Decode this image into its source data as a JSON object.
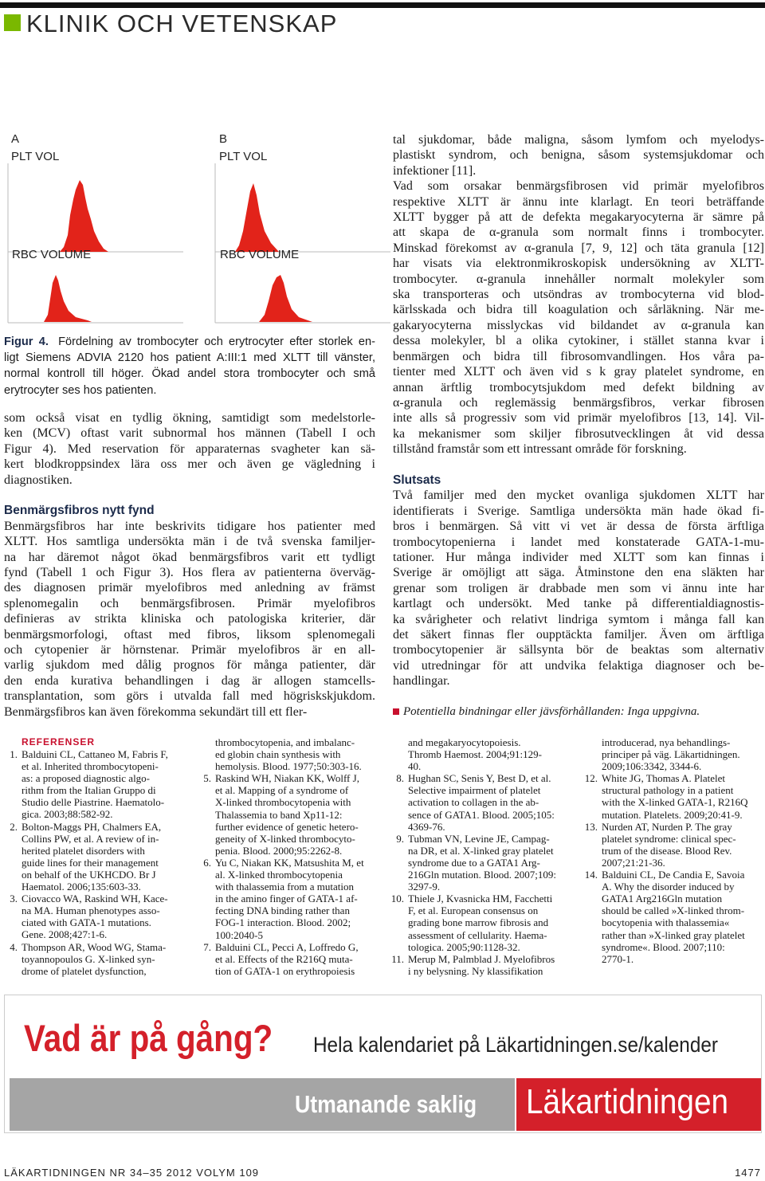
{
  "header": {
    "section": "KLINIK OCH VETENSKAP"
  },
  "figure": {
    "panels": [
      {
        "label": "A",
        "y_axis": "PLT VOL",
        "x_axis": "RBC VOLUME"
      },
      {
        "label": "B",
        "y_axis": "PLT VOL",
        "x_axis": "RBC VOLUME"
      }
    ],
    "caption": {
      "label": "Figur 4.",
      "lines": [
        "Fördelning av trombocyter och erytrocyter efter storlek en-",
        "ligt Siemens ADVIA 2120 hos patient A:III:1 med XLTT till vänster,",
        "normal kontroll till höger. Ökad andel stora trombocyter och små",
        "erytrocyter ses hos patienten."
      ]
    }
  },
  "left_column": {
    "paragraph_1": [
      "som också visat en tydlig ökning, samtidigt som medelstorle-",
      "ken (MCV) oftast varit subnormal hos männen (Tabell I och",
      "Figur 4). Med reservation för apparaternas svagheter kan sä-",
      "kert blodkroppsindex lära oss mer och även ge vägledning i",
      "diagnostiken."
    ],
    "heading": "Benmärgsfibros nytt fynd",
    "paragraph_2": [
      "Benmärgsfibros har inte beskrivits tidigare hos patienter med",
      "XLTT. Hos samtliga undersökta män i de två svenska familjer-",
      "na har däremot något ökad benmärgsfibros varit ett tydligt",
      "fynd (Tabell 1 och Figur 3). Hos flera av patienterna överväg-",
      "des diagnosen primär myelofibros med anledning av främst",
      "splenomegalin och benmärgsfibrosen. Primär myelofibros",
      "definieras av strikta kliniska och patologiska kriterier, där",
      "benmärgsmorfologi, oftast med fibros, liksom splenomegali",
      "och cytopenier är hörnstenar. Primär myelofibros är en all-",
      "varlig sjukdom med dålig prognos för många patienter, där",
      "den enda kurativa behandlingen i dag är allogen stamcells-",
      "transplantation, som görs i utvalda fall med högriskskjukdom.",
      "Benmärgsfibros kan även förekomma sekundärt till ett fler-"
    ]
  },
  "right_column": {
    "paragraph_1": [
      "tal sjukdomar, både maligna, såsom lymfom och myelodys-",
      "plastiskt syndrom, och benigna, såsom systemsjukdomar och",
      "infektioner [11]."
    ],
    "paragraph_2": [
      "Vad som orsakar benmärgsfibrosen vid primär myelofibros",
      "respektive XLTT är ännu inte klarlagt. En teori beträffande",
      "XLTT bygger på att de defekta megakaryocyterna är sämre på",
      "att skapa de α-granula som normalt finns i trombocyter.",
      "Minskad förekomst av α-granula [7, 9, 12] och täta granula [12]",
      "har visats via elektronmikroskopisk undersökning av XLTT-",
      "trombocyter. α-granula innehåller normalt molekyler som",
      "ska transporteras och utsöndras av trombocyterna vid blod-",
      "kärlsskada och bidra till koagulation och sårläkning. När me-",
      "gakaryocyterna misslyckas vid bildandet av α-granula kan",
      "dessa molekyler, bl a olika cytokiner, i stället stanna kvar i",
      "benmärgen och bidra till fibrosomvandlingen. Hos våra pa-",
      "tienter med XLTT och även vid s k gray platelet syndrome, en",
      "annan ärftlig trombocytsjukdom med defekt bildning av",
      "α-granula och reglemässig benmärgsfibros, verkar fibrosen",
      "inte alls så progressiv som vid primär myelofibros [13, 14]. Vil-",
      "ka mekanismer som skiljer fibrosutvecklingen åt vid dessa",
      "tillstånd framstår som ett intressant område för forskning."
    ],
    "heading": "Slutsats",
    "paragraph_3": [
      "Två familjer med den mycket ovanliga sjukdomen XLTT har",
      "identifierats i Sverige. Samtliga undersökta män hade ökad fi-",
      "bros i benmärgen. Så vitt vi vet är dessa de första ärftliga",
      "trombocytopenierna i landet med konstaterade GATA-1-mu-",
      "tationer. Hur många individer med XLTT som kan finnas i",
      "Sverige är omöjligt att säga. Åtminstone den ena släkten har",
      "grenar som troligen är drabbade men som vi ännu inte har",
      "kartlagt och undersökt. Med tanke på differentialdiagnostis-",
      "ka svårigheter och relativt lindriga symtom i många fall kan",
      "det säkert finnas fler oupptäckta familjer. Även om ärftliga",
      "trombocytopenier är sällsynta bör de beaktas som alternativ",
      "vid utredningar för att undvika felaktiga diagnoser och be-",
      "handlingar."
    ],
    "disclosure": "Potentiella bindningar eller jävsförhållanden: Inga uppgivna."
  },
  "references": {
    "heading": "REFERENSER",
    "columns": [
      [
        {
          "number": "1.",
          "lines": [
            "Balduini CL, Cattaneo M, Fabris F,",
            "et al. Inherited thrombocytopeni-",
            "as: a proposed diagnostic algo-",
            "rithm from the Italian Gruppo di",
            "Studio delle Piastrine. Haematolo-",
            "gica. 2003;88:582-92."
          ]
        },
        {
          "number": "2.",
          "lines": [
            "Bolton-Maggs PH, Chalmers EA,",
            "Collins PW, et al. A review of in-",
            "herited platelet disorders with",
            "guide lines for their management",
            "on behalf of the UKHCDO. Br J",
            "Haematol. 2006;135:603-33."
          ]
        },
        {
          "number": "3.",
          "lines": [
            "Ciovacco WA, Raskind WH, Kace-",
            "na MA. Human phenotypes asso-",
            "ciated with GATA-1 mutations.",
            "Gene. 2008;427:1-6."
          ]
        },
        {
          "number": "4.",
          "lines": [
            "Thompson AR, Wood WG, Stama-",
            "toyannopoulos G. X-linked syn-",
            "drome of platelet dysfunction,"
          ]
        }
      ],
      [
        {
          "lines": [
            "thrombocytopenia, and imbalanc-",
            "ed globin chain synthesis with",
            "hemolysis. Blood. 1977;50:303-16."
          ]
        },
        {
          "number": "5.",
          "lines": [
            "Raskind WH, Niakan KK, Wolff J,",
            "et al. Mapping of a syndrome of",
            "X-linked thrombocytopenia with",
            "Thalassemia to band Xp11-12:",
            "further evidence of genetic hetero-",
            "geneity of X-linked thrombocyto-",
            "penia. Blood. 2000;95:2262-8."
          ]
        },
        {
          "number": "6.",
          "lines": [
            "Yu C, Niakan KK, Matsushita M, et",
            "al. X-linked thrombocytopenia",
            "with thalassemia from a mutation",
            "in the amino finger of GATA-1 af-",
            "fecting DNA binding rather than",
            "FOG-1 interaction. Blood. 2002;",
            "100:2040-5"
          ]
        },
        {
          "number": "7.",
          "lines": [
            "Balduini CL, Pecci A, Loffredo G,",
            "et al. Effects of the R216Q muta-",
            "tion of GATA-1 on erythropoiesis"
          ]
        }
      ],
      [
        {
          "lines": [
            "and megakaryocytopoiesis.",
            "Thromb Haemost. 2004;91:129-",
            "40."
          ]
        },
        {
          "number": "8.",
          "lines": [
            "Hughan SC, Senis Y, Best D, et al.",
            "Selective impairment of platelet",
            "activation to collagen in the ab-",
            "sence of GATA1. Blood. 2005;105:",
            "4369-76."
          ]
        },
        {
          "number": "9.",
          "lines": [
            "Tubman VN, Levine JE, Campag-",
            "na DR, et al. X-linked gray platelet",
            "syndrome due to a GATA1 Arg-",
            "216Gln mutation. Blood. 2007;109:",
            "3297-9."
          ]
        },
        {
          "number": "10.",
          "lines": [
            "Thiele J, Kvasnicka HM, Facchetti",
            "F, et al. European consensus on",
            "grading bone marrow fibrosis and",
            "assessment of cellularity. Haema-",
            "tologica. 2005;90:1128-32."
          ]
        },
        {
          "number": "11.",
          "lines": [
            "Merup M, Palmblad J. Myelofibros",
            "i ny belysning. Ny klassifikation"
          ]
        }
      ],
      [
        {
          "lines": [
            "introducerad, nya behandlings-",
            "principer på väg. Läkartidningen.",
            "2009;106:3342, 3344-6."
          ]
        },
        {
          "number": "12.",
          "lines": [
            "White JG, Thomas A. Platelet",
            "structural pathology in a patient",
            "with the X-linked GATA-1, R216Q",
            "mutation. Platelets. 2009;20:41-9."
          ]
        },
        {
          "number": "13.",
          "lines": [
            "Nurden AT, Nurden P. The gray",
            "platelet syndrome: clinical spec-",
            "trum of the disease. Blood Rev.",
            "2007;21:21-36."
          ]
        },
        {
          "number": "14.",
          "lines": [
            "Balduini CL, De Candia E, Savoia",
            "A. Why the disorder induced by",
            "GATA1 Arg216Gln mutation",
            "should be called »X-linked throm-",
            "bocytopenia with thalassemia«",
            "rather than »X-linked gray platelet",
            "syndrome«. Blood. 2007;110:",
            "2770-1."
          ]
        }
      ]
    ]
  },
  "ad": {
    "headline": "Vad är på gång?",
    "tagline": "Hela kalendariet på Läkartidningen.se/kalender",
    "slogan": "Utmanande saklig",
    "brand": "Läkartidningen"
  },
  "footer": {
    "publication": "LÄKARTIDNINGEN NR 34–35 2012 VOLYM 109",
    "page": "1477"
  }
}
